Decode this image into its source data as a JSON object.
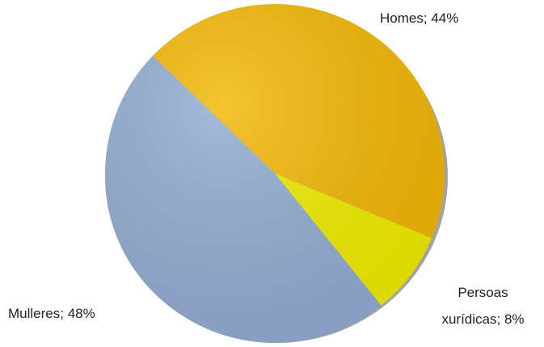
{
  "chart_data": {
    "type": "pie",
    "categories": [
      "Homes;",
      "Persoas xurídicas;",
      "Mulleres;"
    ],
    "values": [
      44,
      8,
      48
    ],
    "value_labels": [
      "44%",
      "8%",
      "48%"
    ],
    "colors": [
      "#f2b705",
      "#f0ec00",
      "#92acd2"
    ]
  }
}
